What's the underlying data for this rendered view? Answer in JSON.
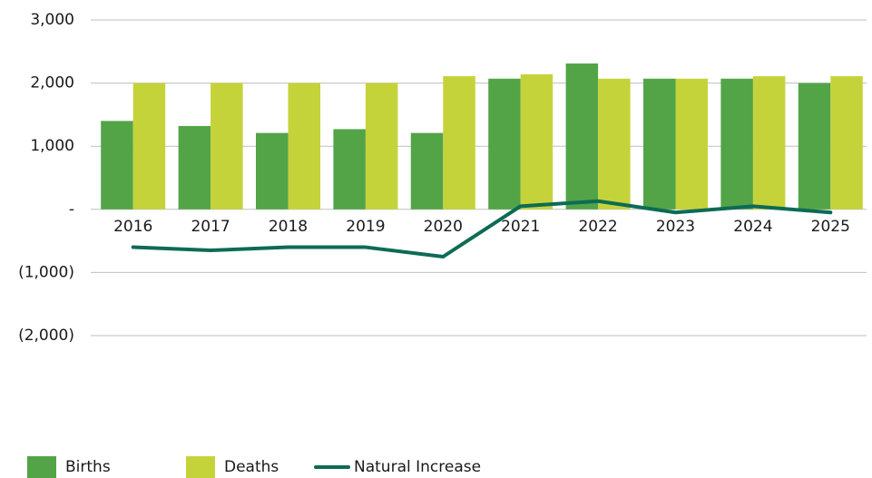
{
  "chart_data": {
    "type": "bar",
    "categories": [
      "2016",
      "2017",
      "2018",
      "2019",
      "2020",
      "2021",
      "2022",
      "2023",
      "2024",
      "2025"
    ],
    "series": [
      {
        "name": "Births",
        "color": "#52a447",
        "values": [
          1400,
          1320,
          1210,
          1270,
          1210,
          2070,
          2310,
          2070,
          2070,
          2000
        ]
      },
      {
        "name": "Deaths",
        "color": "#c5d33a",
        "values": [
          2000,
          2000,
          2000,
          2000,
          2110,
          2140,
          2070,
          2070,
          2110,
          2110
        ]
      },
      {
        "name": "Natural Increase",
        "type": "line",
        "color": "#0d6b55",
        "values": [
          -600,
          -650,
          -600,
          -600,
          -750,
          50,
          130,
          -50,
          50,
          -50
        ]
      }
    ],
    "ylim": [
      -2000,
      3000
    ],
    "yticks": [
      {
        "value": -2000,
        "label": "(2,000)"
      },
      {
        "value": -1000,
        "label": "(1,000)"
      },
      {
        "value": 0,
        "label": "-"
      },
      {
        "value": 1000,
        "label": "1,000"
      },
      {
        "value": 2000,
        "label": "2,000"
      },
      {
        "value": 3000,
        "label": "3,000"
      }
    ],
    "grid": true,
    "legend": "bottom"
  }
}
